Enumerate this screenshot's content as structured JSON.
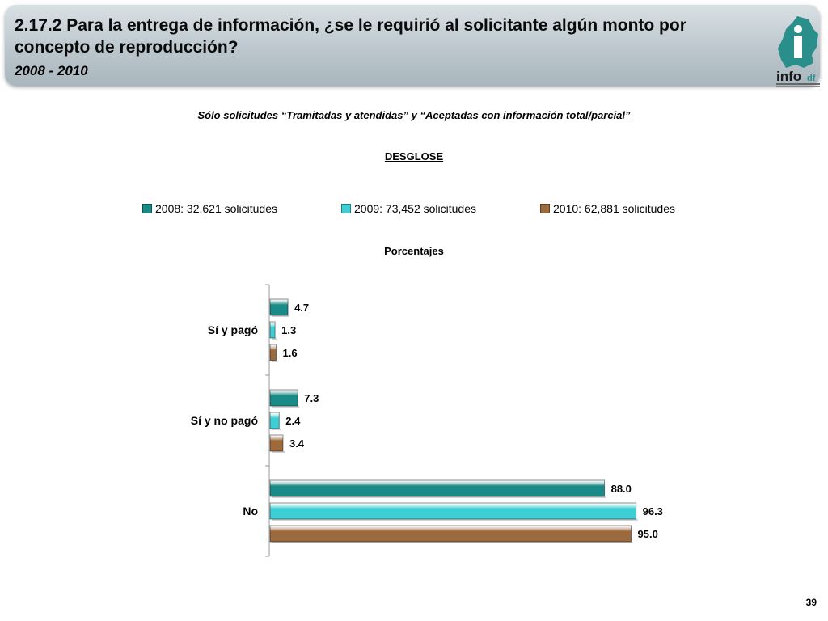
{
  "header": {
    "title_num": "2.17.2",
    "title_text": " Para la entrega de información, ¿se le requirió al solicitante algún monto por concepto de reproducción?",
    "years": "2008 - 2010",
    "logo_text": "info",
    "logo_suffix": "df"
  },
  "subtitle": "Sólo solicitudes “Tramitadas y atendidas” y “Aceptadas con información total/parcial”",
  "desglose": "DESGLOSE",
  "porcentajes": "Porcentajes",
  "page_number": "39",
  "colors": {
    "s2008": "#1a8a86",
    "s2009": "#3ecfd6",
    "s2010": "#9c6a3c"
  },
  "chart_data": {
    "type": "bar",
    "orientation": "horizontal",
    "categories": [
      "Sí y pagó",
      "Sí y no pagó",
      "No"
    ],
    "series": [
      {
        "name": "2008: 32,621 solicitudes",
        "values": [
          4.7,
          7.3,
          88.0
        ]
      },
      {
        "name": "2009: 73,452 solicitudes",
        "values": [
          1.3,
          2.4,
          96.3
        ]
      },
      {
        "name": "2010: 62,881 solicitudes",
        "values": [
          1.6,
          3.4,
          95.0
        ]
      }
    ],
    "xlim": [
      0,
      100
    ],
    "legend": "top",
    "grid": false
  }
}
